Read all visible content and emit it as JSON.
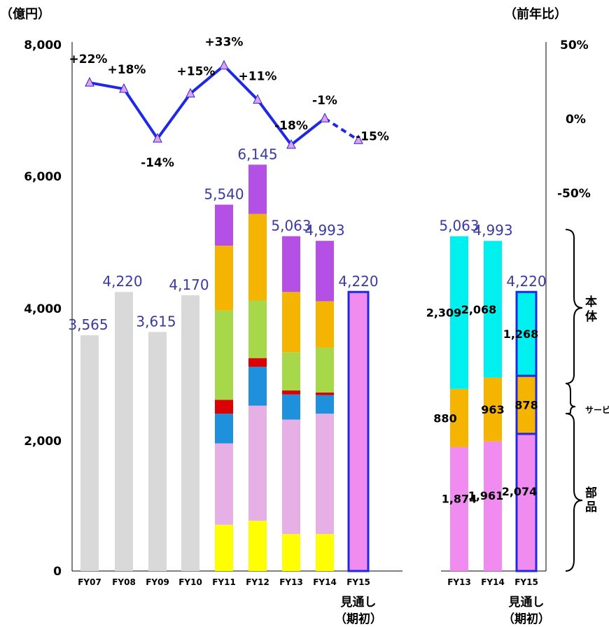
{
  "chart_data": {
    "type": "bar",
    "left_unit": "（億円）",
    "right_unit": "（前年比）",
    "y_left": {
      "min": 0,
      "max": 8000,
      "ticks": [
        "0",
        "2,000",
        "4,000",
        "6,000",
        "8,000"
      ]
    },
    "y_right": {
      "min": -150,
      "max": 50,
      "ticks": [
        "50%",
        "0%",
        "-50%"
      ]
    },
    "categories": [
      "FY07",
      "FY08",
      "FY09",
      "FY10",
      "FY11",
      "FY12",
      "FY13",
      "FY14",
      "FY15"
    ],
    "fy15_note": [
      "見通し",
      "（期初）"
    ],
    "totals": [
      3565,
      4220,
      3615,
      4170,
      5540,
      6145,
      5063,
      4993,
      4220
    ],
    "total_labels": [
      "3,565",
      "4,220",
      "3,615",
      "4,170",
      "5,540",
      "6,145",
      "5,063",
      "4,993",
      "4,220"
    ],
    "stack_colors": [
      "#ffff00",
      "#e6b0e6",
      "#1e90dc",
      "#dc0000",
      "#a6d84a",
      "#f5b400",
      "#b450e6"
    ],
    "stacks": [
      [],
      [],
      [],
      [],
      [
        700,
        1230,
        450,
        210,
        1350,
        980,
        620
      ],
      [
        760,
        1740,
        590,
        130,
        870,
        1310,
        745
      ],
      [
        560,
        1730,
        380,
        60,
        580,
        910,
        843
      ],
      [
        560,
        1820,
        280,
        40,
        680,
        700,
        913
      ],
      []
    ],
    "growth": {
      "values": [
        22,
        18,
        -14,
        15,
        33,
        11,
        -18,
        -1,
        -15
      ],
      "labels": [
        "+22%",
        "+18%",
        "-14%",
        "+15%",
        "+33%",
        "+11%",
        "-18%",
        "-1%",
        "-15%"
      ],
      "line_color": "#1e28e6",
      "marker_color": "#e6a0e6"
    },
    "breakdown": {
      "categories": [
        "FY13",
        "FY14",
        "FY15"
      ],
      "fy15_note": [
        "見通し",
        "（期初）"
      ],
      "totals": [
        5063,
        4993,
        4220
      ],
      "total_labels": [
        "5,063",
        "4,993",
        "4,220"
      ],
      "segments": [
        {
          "name": "部品",
          "color": "#f08cf0",
          "values": [
            1874,
            1961,
            2074
          ],
          "labels": [
            "1,874",
            "1,961",
            "2,074"
          ]
        },
        {
          "name": "サービス等",
          "color": "#f5b400",
          "values": [
            880,
            963,
            878
          ],
          "labels": [
            "880",
            "963",
            "878"
          ]
        },
        {
          "name": "本体",
          "color": "#00f0f0",
          "values": [
            2309,
            2068,
            1268
          ],
          "labels": [
            "2,309",
            "2,068",
            "1,268"
          ]
        }
      ],
      "brackets": [
        "部品",
        "サービス等",
        "本体"
      ]
    },
    "colors": {
      "history_bar": "#d9d9d9",
      "fy15_fill": "#f08cf0",
      "fy15_border": "#1e28e6",
      "total_label": "#3a3aa0"
    }
  }
}
